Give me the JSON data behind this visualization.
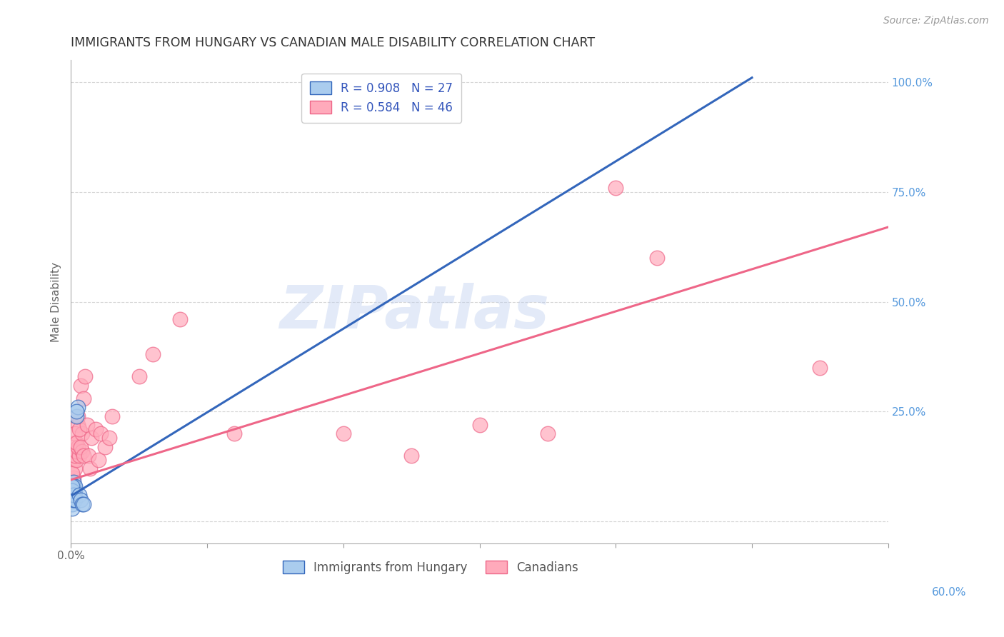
{
  "title": "IMMIGRANTS FROM HUNGARY VS CANADIAN MALE DISABILITY CORRELATION CHART",
  "source": "Source: ZipAtlas.com",
  "ylabel": "Male Disability",
  "yticks": [
    "",
    "25.0%",
    "50.0%",
    "75.0%",
    "100.0%"
  ],
  "ytick_vals": [
    0,
    0.25,
    0.5,
    0.75,
    1.0
  ],
  "xmin": 0.0,
  "xmax": 0.6,
  "ymin": -0.05,
  "ymax": 1.05,
  "legend_label1": "R = 0.908   N = 27",
  "legend_label2": "R = 0.584   N = 46",
  "legend_bottom1": "Immigrants from Hungary",
  "legend_bottom2": "Canadians",
  "watermark": "ZIPatlas",
  "blue_scatter": [
    [
      0.001,
      0.06
    ],
    [
      0.002,
      0.07
    ],
    [
      0.001,
      0.08
    ],
    [
      0.003,
      0.07
    ],
    [
      0.002,
      0.09
    ],
    [
      0.001,
      0.05
    ],
    [
      0.003,
      0.06
    ],
    [
      0.001,
      0.04
    ],
    [
      0.002,
      0.08
    ],
    [
      0.001,
      0.07
    ],
    [
      0.001,
      0.06
    ],
    [
      0.001,
      0.05
    ],
    [
      0.002,
      0.06
    ],
    [
      0.001,
      0.03
    ],
    [
      0.003,
      0.08
    ],
    [
      0.002,
      0.05
    ],
    [
      0.001,
      0.07
    ],
    [
      0.002,
      0.06
    ],
    [
      0.003,
      0.05
    ],
    [
      0.001,
      0.08
    ],
    [
      0.004,
      0.24
    ],
    [
      0.005,
      0.26
    ],
    [
      0.004,
      0.25
    ],
    [
      0.006,
      0.06
    ],
    [
      0.007,
      0.05
    ],
    [
      0.008,
      0.04
    ],
    [
      0.009,
      0.04
    ]
  ],
  "pink_scatter": [
    [
      0.001,
      0.07
    ],
    [
      0.002,
      0.1
    ],
    [
      0.001,
      0.08
    ],
    [
      0.002,
      0.14
    ],
    [
      0.003,
      0.12
    ],
    [
      0.002,
      0.16
    ],
    [
      0.003,
      0.18
    ],
    [
      0.001,
      0.11
    ],
    [
      0.004,
      0.14
    ],
    [
      0.003,
      0.15
    ],
    [
      0.004,
      0.16
    ],
    [
      0.005,
      0.22
    ],
    [
      0.003,
      0.2
    ],
    [
      0.006,
      0.15
    ],
    [
      0.005,
      0.17
    ],
    [
      0.007,
      0.31
    ],
    [
      0.004,
      0.18
    ],
    [
      0.008,
      0.2
    ],
    [
      0.006,
      0.21
    ],
    [
      0.005,
      0.24
    ],
    [
      0.009,
      0.28
    ],
    [
      0.01,
      0.33
    ],
    [
      0.008,
      0.16
    ],
    [
      0.007,
      0.17
    ],
    [
      0.009,
      0.15
    ],
    [
      0.012,
      0.22
    ],
    [
      0.015,
      0.19
    ],
    [
      0.013,
      0.15
    ],
    [
      0.014,
      0.12
    ],
    [
      0.018,
      0.21
    ],
    [
      0.02,
      0.14
    ],
    [
      0.025,
      0.17
    ],
    [
      0.022,
      0.2
    ],
    [
      0.03,
      0.24
    ],
    [
      0.028,
      0.19
    ],
    [
      0.05,
      0.33
    ],
    [
      0.06,
      0.38
    ],
    [
      0.08,
      0.46
    ],
    [
      0.12,
      0.2
    ],
    [
      0.2,
      0.2
    ],
    [
      0.25,
      0.15
    ],
    [
      0.3,
      0.22
    ],
    [
      0.35,
      0.2
    ],
    [
      0.4,
      0.76
    ],
    [
      0.43,
      0.6
    ],
    [
      0.55,
      0.35
    ]
  ],
  "blue_line_x": [
    0.001,
    0.5
  ],
  "blue_line_y": [
    0.06,
    1.01
  ],
  "pink_line_x": [
    0.0,
    0.6
  ],
  "pink_line_y": [
    0.095,
    0.67
  ],
  "blue_color": "#AACCEE",
  "blue_color_line": "#3366BB",
  "pink_color": "#FFAABB",
  "pink_color_line": "#EE6688",
  "grid_color": "#CCCCCC",
  "title_color": "#333333",
  "right_axis_color": "#5599DD",
  "watermark_color": "#BBCCEE"
}
